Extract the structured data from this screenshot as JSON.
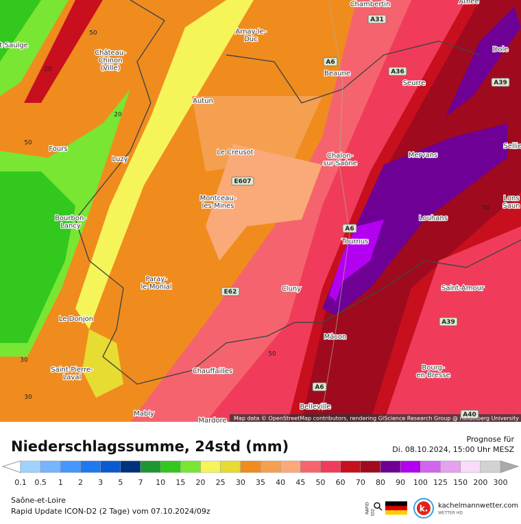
{
  "map": {
    "places": [
      {
        "lines": [
          "t-Saulge"
        ]
      },
      {
        "lines": [
          "Athée"
        ]
      },
      {
        "lines": [
          "Chambertin"
        ]
      },
      {
        "lines": [
          "Arnay-le-",
          "Duc"
        ]
      },
      {
        "lines": [
          "Château-",
          "Chinon",
          "(Ville)"
        ]
      },
      {
        "lines": [
          "Beaune"
        ]
      },
      {
        "lines": [
          "Seurre"
        ]
      },
      {
        "lines": [
          "Dole"
        ]
      },
      {
        "lines": [
          "Autun"
        ]
      },
      {
        "lines": [
          "Fours"
        ]
      },
      {
        "lines": [
          "Luzy"
        ]
      },
      {
        "lines": [
          "Le Creusot"
        ]
      },
      {
        "lines": [
          "Chalon-",
          "sur-Saône"
        ]
      },
      {
        "lines": [
          "Mervans"
        ]
      },
      {
        "lines": [
          "Sellie"
        ]
      },
      {
        "lines": [
          "Lons",
          "Saun"
        ]
      },
      {
        "lines": [
          "Montceau-",
          "les-Mines"
        ]
      },
      {
        "lines": [
          "Bourbon-",
          "Lancy"
        ]
      },
      {
        "lines": [
          "Louhans"
        ]
      },
      {
        "lines": [
          "Tournus"
        ]
      },
      {
        "lines": [
          "Paray-",
          "le-Monial"
        ]
      },
      {
        "lines": [
          "Cluny"
        ]
      },
      {
        "lines": [
          "Saint-Amour"
        ]
      },
      {
        "lines": [
          "Le Donjon"
        ]
      },
      {
        "lines": [
          "Mâcon"
        ]
      },
      {
        "lines": [
          "Saint-Pierre-",
          "Laval"
        ]
      },
      {
        "lines": [
          "Chauffailles"
        ]
      },
      {
        "lines": [
          "Bourg-",
          "en-Bresse"
        ]
      },
      {
        "lines": [
          "Belleville"
        ]
      },
      {
        "lines": [
          "Mably"
        ]
      },
      {
        "lines": [
          "Mardore"
        ]
      }
    ],
    "roads": [
      "A31",
      "A6",
      "A36",
      "A39",
      "E607",
      "A6",
      "E62",
      "A39",
      "A6",
      "A40"
    ],
    "contour_labels": [
      50,
      20,
      20,
      50,
      50,
      50,
      30,
      30
    ],
    "attribution": "Map data © OpenStreetMap contributors, rendering GIScience Research Group @ Heidelberg University"
  },
  "header": {
    "title": "Niederschlagssumme, 24std (mm)",
    "forecast_label": "Prognose für",
    "forecast_time": "Di. 08.10.2024, 15:00 Uhr MESZ"
  },
  "legend": {
    "values": [
      0.1,
      0.5,
      1,
      2,
      3,
      5,
      7,
      10,
      15,
      20,
      25,
      30,
      35,
      40,
      45,
      50,
      60,
      70,
      80,
      90,
      100,
      125,
      150,
      200,
      300
    ],
    "colors": [
      "#a0d2ff",
      "#78b4ff",
      "#4696ff",
      "#1e78f0",
      "#0a5ad2",
      "#00327d",
      "#1e9632",
      "#32c81e",
      "#78e632",
      "#f5f55a",
      "#e6dc32",
      "#f08c1e",
      "#f5a050",
      "#faaa78",
      "#f5646e",
      "#f03c5a",
      "#c80f1e",
      "#a00a1e",
      "#6e0096",
      "#b400f0",
      "#d264f0",
      "#e6a0f0",
      "#f8dcf8",
      "#d2d2d2"
    ]
  },
  "footer": {
    "region": "Saône-et-Loire",
    "model": "Rapid Update ICON-D2 (2 Tage) vom  07.10.2024/09z",
    "badge": [
      "RAPID",
      "ID2"
    ],
    "logo_mark": "k.",
    "logo_text": "kachelmannwetter.com",
    "logo_sub": "WETTER HD"
  }
}
